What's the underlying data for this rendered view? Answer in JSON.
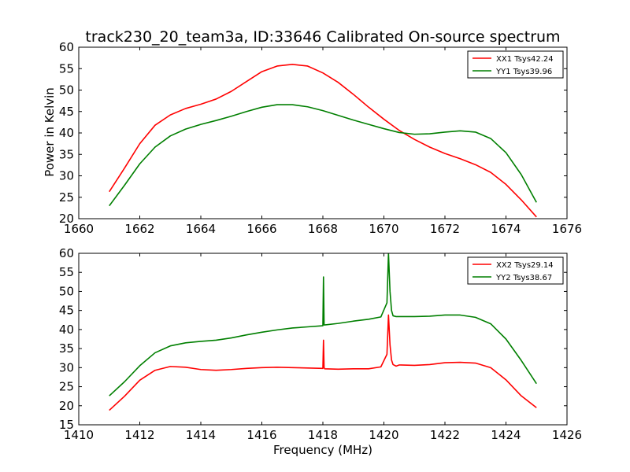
{
  "chart_data": [
    {
      "type": "line",
      "title": "track230_20_team3a, ID:33646 Calibrated On-source spectrum",
      "xlabel": "",
      "ylabel": "Power in Kelvin",
      "xlim": [
        1660,
        1676
      ],
      "ylim": [
        20,
        60
      ],
      "xticks": [
        1660,
        1662,
        1664,
        1666,
        1668,
        1670,
        1672,
        1674,
        1676
      ],
      "yticks": [
        20,
        25,
        30,
        35,
        40,
        45,
        50,
        55,
        60
      ],
      "grid": false,
      "legend": "top-right",
      "series": [
        {
          "name": "XX1 Tsys42.24",
          "color": "#ff0000",
          "x": [
            1661,
            1661.5,
            1662,
            1662.5,
            1663,
            1663.5,
            1664,
            1664.5,
            1665,
            1665.5,
            1666,
            1666.5,
            1667,
            1667.5,
            1668,
            1668.5,
            1669,
            1669.5,
            1670,
            1670.5,
            1671,
            1671.5,
            1672,
            1672.5,
            1673,
            1673.5,
            1674,
            1674.5,
            1675
          ],
          "y": [
            26.3,
            31.8,
            37.5,
            41.8,
            44.2,
            45.7,
            46.7,
            47.9,
            49.7,
            52.0,
            54.3,
            55.6,
            56.0,
            55.6,
            54.0,
            51.8,
            49.0,
            46.0,
            43.2,
            40.6,
            38.5,
            36.7,
            35.2,
            34.0,
            32.6,
            30.8,
            28.0,
            24.4,
            20.4
          ]
        },
        {
          "name": "YY1 Tsys39.96",
          "color": "#007f00",
          "x": [
            1661,
            1661.5,
            1662,
            1662.5,
            1663,
            1663.5,
            1664,
            1664.5,
            1665,
            1665.5,
            1666,
            1666.5,
            1667,
            1667.5,
            1668,
            1668.5,
            1669,
            1669.5,
            1670,
            1670.5,
            1671,
            1671.5,
            1672,
            1672.5,
            1673,
            1673.5,
            1674,
            1674.5,
            1675
          ],
          "y": [
            23.0,
            27.8,
            32.8,
            36.7,
            39.3,
            40.9,
            42.0,
            42.9,
            43.9,
            45.0,
            46.0,
            46.6,
            46.6,
            46.1,
            45.2,
            44.1,
            43.0,
            42.0,
            41.0,
            40.1,
            39.7,
            39.8,
            40.2,
            40.5,
            40.2,
            38.7,
            35.4,
            30.3,
            23.8
          ]
        }
      ]
    },
    {
      "type": "line",
      "title": "",
      "xlabel": "Frequency (MHz)",
      "ylabel": "",
      "xlim": [
        1410,
        1426
      ],
      "ylim": [
        15,
        60
      ],
      "xticks": [
        1410,
        1412,
        1414,
        1416,
        1418,
        1420,
        1422,
        1424,
        1426
      ],
      "yticks": [
        15,
        20,
        25,
        30,
        35,
        40,
        45,
        50,
        55,
        60
      ],
      "grid": false,
      "legend": "top-right",
      "series": [
        {
          "name": "XX2 Tsys29.14",
          "color": "#ff0000",
          "x": [
            1411,
            1411.5,
            1412,
            1412.5,
            1413,
            1413.5,
            1414,
            1414.5,
            1415,
            1415.5,
            1416,
            1416.5,
            1417,
            1417.5,
            1418,
            1418.02,
            1418.04,
            1418.06,
            1418.5,
            1419,
            1419.5,
            1419.9,
            1420.1,
            1420.15,
            1420.2,
            1420.25,
            1420.3,
            1420.4,
            1420.5,
            1421,
            1421.5,
            1422,
            1422.5,
            1423,
            1423.5,
            1424,
            1424.5,
            1425
          ],
          "y": [
            18.8,
            22.5,
            26.7,
            29.3,
            30.3,
            30.1,
            29.5,
            29.3,
            29.5,
            29.8,
            30.0,
            30.1,
            30.0,
            29.9,
            29.8,
            37.2,
            30.0,
            29.7,
            29.6,
            29.7,
            29.7,
            30.2,
            33.5,
            43.8,
            36.0,
            32.0,
            30.8,
            30.4,
            30.7,
            30.6,
            30.8,
            31.3,
            31.4,
            31.2,
            30.0,
            26.8,
            22.6,
            19.5
          ]
        },
        {
          "name": "YY2 Tsys38.67",
          "color": "#007f00",
          "x": [
            1411,
            1411.5,
            1412,
            1412.5,
            1413,
            1413.5,
            1414,
            1414.5,
            1415,
            1415.5,
            1416,
            1416.5,
            1417,
            1417.5,
            1418,
            1418.02,
            1418.04,
            1418.06,
            1418.5,
            1419,
            1419.5,
            1419.9,
            1420.1,
            1420.15,
            1420.2,
            1420.25,
            1420.3,
            1420.4,
            1420.5,
            1421,
            1421.5,
            1422,
            1422.5,
            1423,
            1423.5,
            1424,
            1424.5,
            1425
          ],
          "y": [
            22.6,
            26.3,
            30.5,
            33.9,
            35.7,
            36.5,
            36.9,
            37.2,
            37.8,
            38.6,
            39.3,
            39.9,
            40.4,
            40.7,
            41.0,
            53.8,
            41.2,
            41.2,
            41.6,
            42.2,
            42.7,
            43.3,
            47.0,
            60.0,
            50.0,
            45.0,
            43.6,
            43.4,
            43.4,
            43.4,
            43.5,
            43.8,
            43.8,
            43.2,
            41.5,
            37.5,
            31.9,
            25.8
          ]
        }
      ]
    }
  ]
}
